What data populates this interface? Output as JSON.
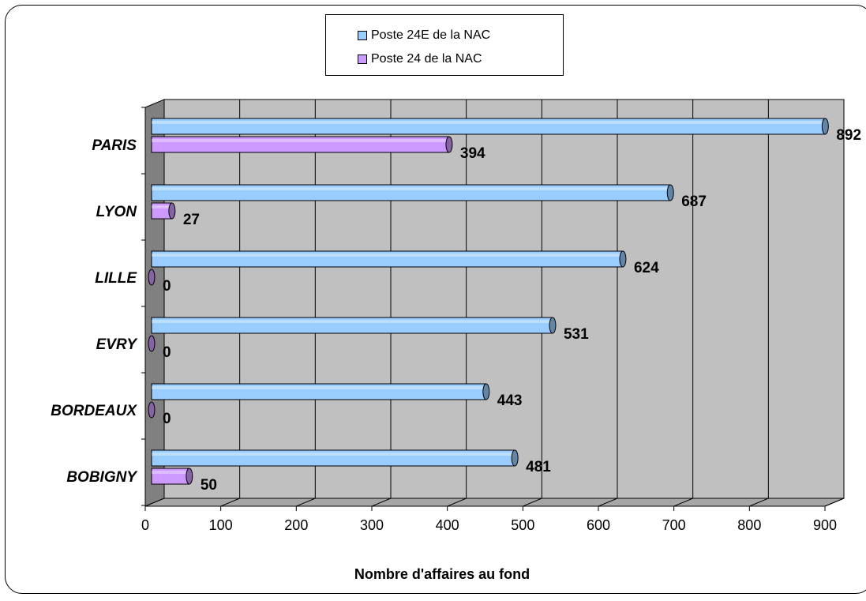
{
  "chart_data": {
    "type": "bar",
    "orientation": "horizontal",
    "style": "3d-cylinder",
    "categories": [
      "PARIS",
      "LYON",
      "LILLE",
      "EVRY",
      "BORDEAUX",
      "BOBIGNY"
    ],
    "series": [
      {
        "name": "Poste 24E de la NAC",
        "color": "#99ccff",
        "values": [
          892,
          687,
          624,
          531,
          443,
          481
        ]
      },
      {
        "name": "Poste 24 de la NAC",
        "color": "#cc99ff",
        "values": [
          394,
          27,
          0,
          0,
          0,
          50
        ]
      }
    ],
    "xticks": [
      0,
      100,
      200,
      300,
      400,
      500,
      600,
      700,
      800,
      900
    ],
    "xlim": [
      0,
      900
    ],
    "xlabel": "Nombre d'affaires au fond",
    "ylabel": "",
    "title": "",
    "grid": true,
    "legend_position": "top",
    "plot_background": "#c0c0c0"
  }
}
